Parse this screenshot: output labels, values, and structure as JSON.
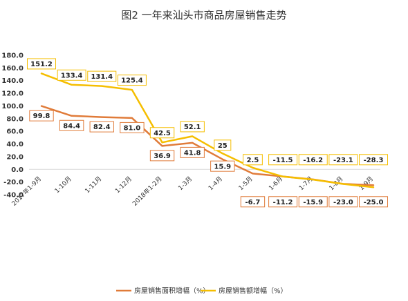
{
  "chart_data": {
    "type": "line",
    "title": "图2   一年来汕头市商品房屋销售走势",
    "x": [
      "2017年1-9月",
      "1-10月",
      "1-11月",
      "1-12月",
      "2018年1-2月",
      "1-3月",
      "1-4月",
      "1-5月",
      "1-6月",
      "1-7月",
      "1-8月",
      "1-9月"
    ],
    "ylim": [
      -40,
      180
    ],
    "yticks": [
      "180.0",
      "160.0",
      "140.0",
      "120.0",
      "100.0",
      "80.0",
      "60.0",
      "40.0",
      "20.0",
      "0.0",
      "-20.0",
      "-40.0"
    ],
    "series": [
      {
        "name": "房屋销售面积增幅（%）",
        "color": "#E07B39",
        "values": [
          99.8,
          84.4,
          82.4,
          81.0,
          36.9,
          41.8,
          15.9,
          -6.7,
          -11.2,
          -15.9,
          -23.0,
          -25.0
        ],
        "labels": [
          "99.8",
          "84.4",
          "82.4",
          "81.0",
          "36.9",
          "41.8",
          "15.9",
          "-6.7",
          "-11.2",
          "-15.9",
          "-23.0",
          "-25.0"
        ]
      },
      {
        "name": "房屋销售额增幅（%）",
        "color": "#F5BE00",
        "values": [
          151.2,
          133.4,
          131.4,
          125.4,
          42.5,
          52.1,
          25,
          2.5,
          -11.5,
          -16.2,
          -23.1,
          -28.3
        ],
        "labels": [
          "151.2",
          "133.4",
          "131.4",
          "125.4",
          "42.5",
          "52.1",
          "25",
          "2.5",
          "-11.5",
          "-16.2",
          "-23.1",
          "-28.3"
        ]
      }
    ],
    "grid": false,
    "legend": "bottom"
  }
}
